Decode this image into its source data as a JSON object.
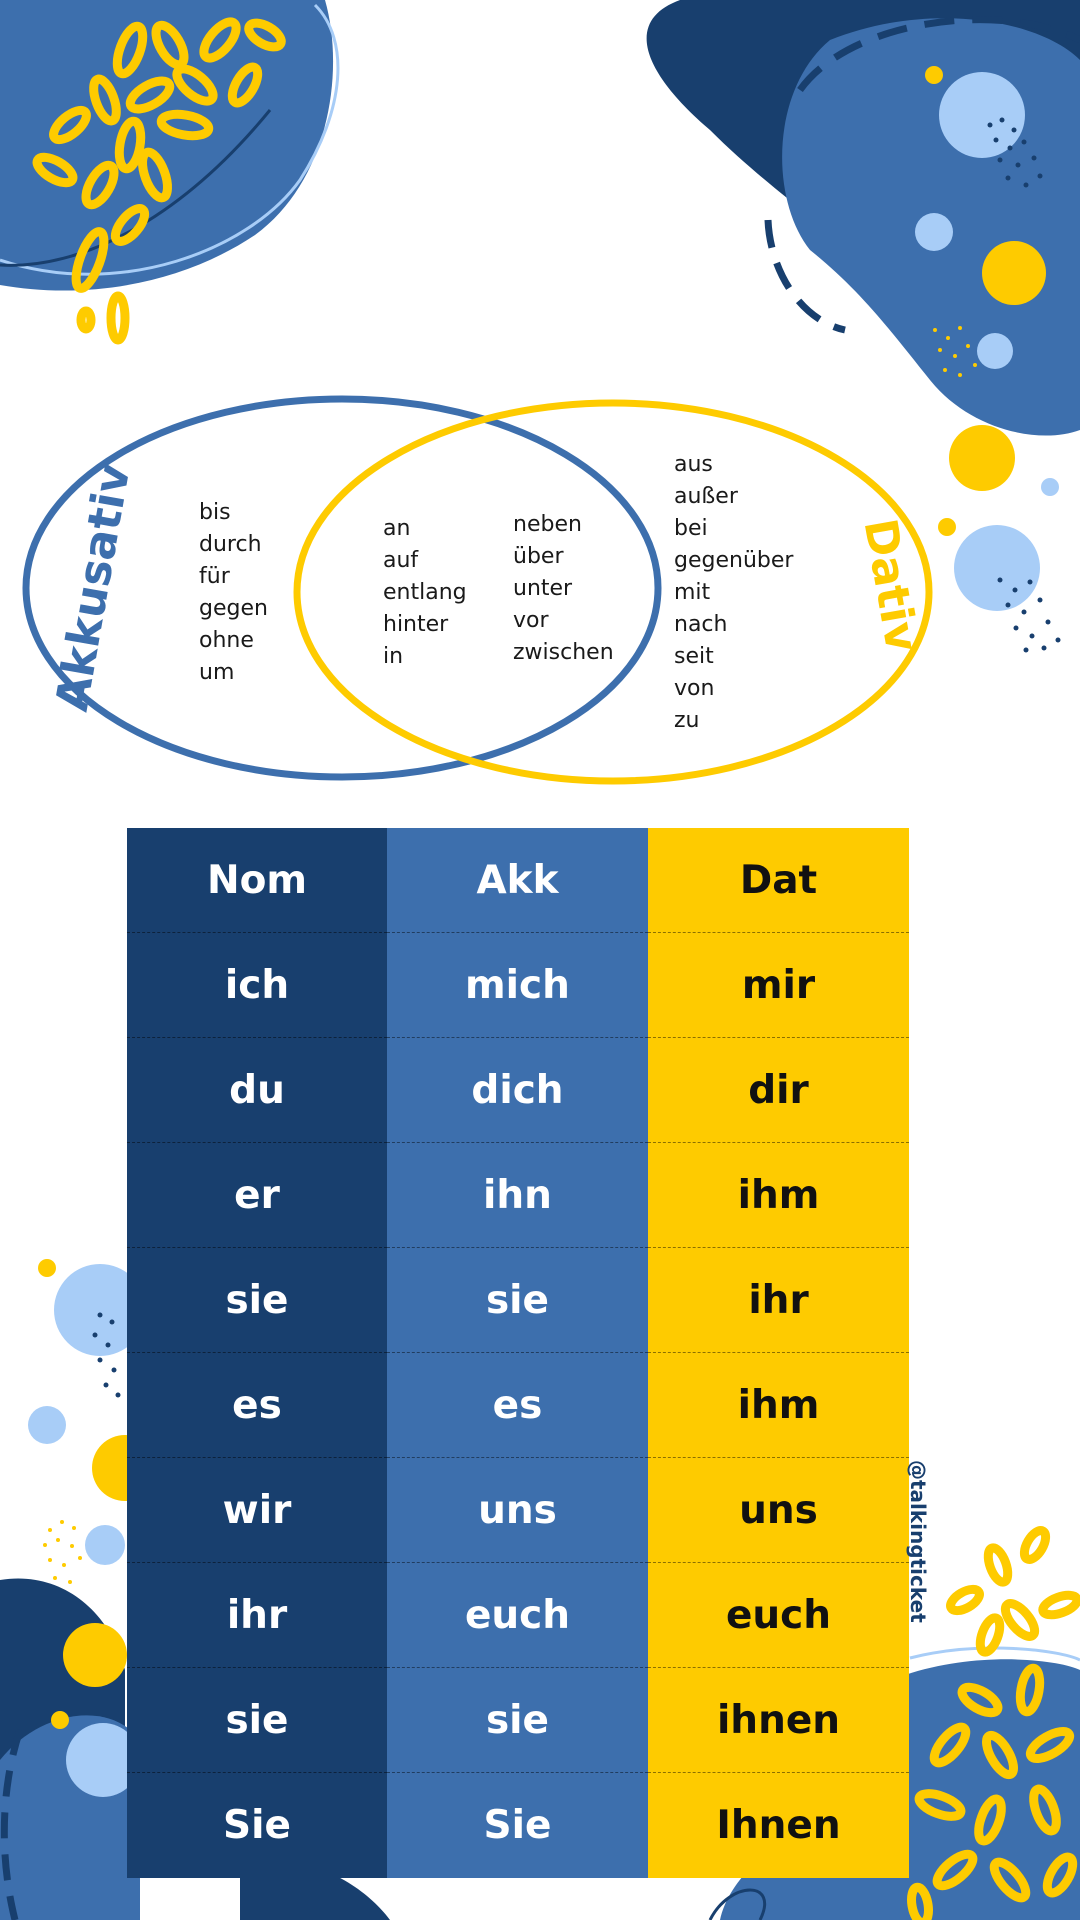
{
  "colors": {
    "navy": "#183f6e",
    "blue": "#3d6fad",
    "light_blue": "#a8cdf7",
    "yellow": "#fecb00"
  },
  "venn": {
    "left_label": "Akkusativ",
    "right_label": "Dativ",
    "akkusativ_only": [
      "bis",
      "durch",
      "für",
      "gegen",
      "ohne",
      "um"
    ],
    "both_col1": [
      "an",
      "auf",
      "entlang",
      "hinter",
      "in"
    ],
    "both_col2": [
      "neben",
      "über",
      "unter",
      "vor",
      "zwischen"
    ],
    "dativ_only": [
      "aus",
      "außer",
      "bei",
      "gegenüber",
      "mit",
      "nach",
      "seit",
      "von",
      "zu"
    ]
  },
  "table": {
    "headers": [
      "Nom",
      "Akk",
      "Dat"
    ],
    "rows": [
      [
        "ich",
        "mich",
        "mir"
      ],
      [
        "du",
        "dich",
        "dir"
      ],
      [
        "er",
        "ihn",
        "ihm"
      ],
      [
        "sie",
        "sie",
        "ihr"
      ],
      [
        "es",
        "es",
        "ihm"
      ],
      [
        "wir",
        "uns",
        "uns"
      ],
      [
        "ihr",
        "euch",
        "euch"
      ],
      [
        "sie",
        "sie",
        "ihnen"
      ],
      [
        "Sie",
        "Sie",
        "Ihnen"
      ]
    ]
  },
  "footer": {
    "handle": "@talkingticket"
  }
}
